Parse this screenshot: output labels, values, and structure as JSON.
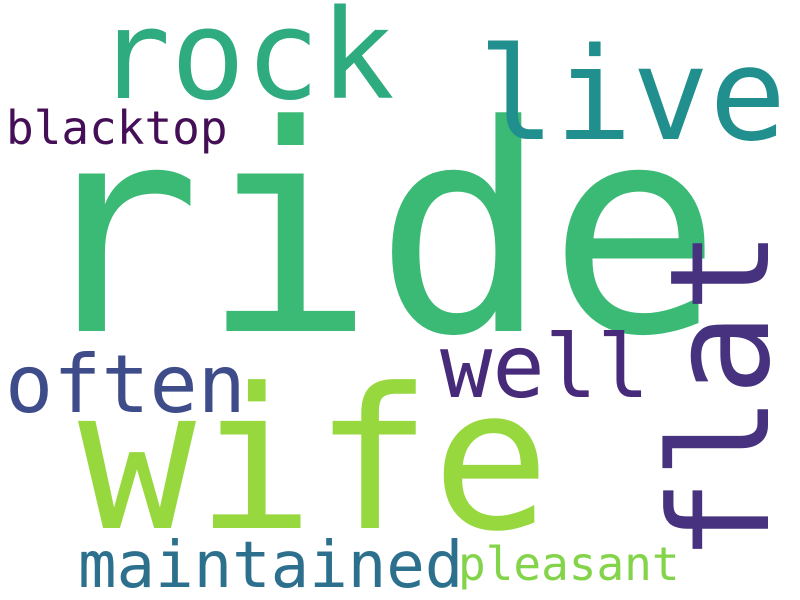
{
  "words": [
    {
      "id": "ride",
      "text": "ride",
      "color": "#3bba76",
      "rotated": false
    },
    {
      "id": "wife",
      "text": "wife",
      "color": "#97d83f",
      "rotated": false
    },
    {
      "id": "flat",
      "text": "flat",
      "color": "#46327e",
      "rotated": true
    },
    {
      "id": "rock",
      "text": "rock",
      "color": "#2fab80",
      "rotated": false
    },
    {
      "id": "live",
      "text": "live",
      "color": "#218f8d",
      "rotated": false
    },
    {
      "id": "often",
      "text": "often",
      "color": "#3e4c8a",
      "rotated": false
    },
    {
      "id": "well",
      "text": "well",
      "color": "#472a7a",
      "rotated": false
    },
    {
      "id": "maintained",
      "text": "maintained",
      "color": "#2d708e",
      "rotated": false
    },
    {
      "id": "pleasant",
      "text": "pleasant",
      "color": "#84d44b",
      "rotated": false
    },
    {
      "id": "blacktop",
      "text": "blacktop",
      "color": "#440f56",
      "rotated": false
    }
  ]
}
